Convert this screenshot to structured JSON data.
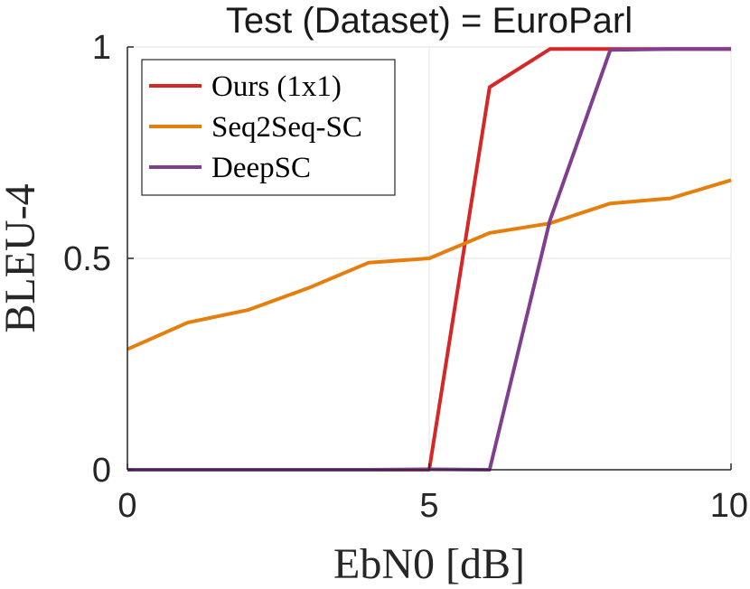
{
  "chart_data": {
    "type": "line",
    "title": "Test (Dataset) = EuroParl",
    "xlabel": "EbN0 [dB]",
    "ylabel": "BLEU-4",
    "xlim": [
      0,
      10
    ],
    "ylim": [
      0,
      1
    ],
    "xticks": [
      0,
      5,
      10
    ],
    "xtick_labels": [
      "0",
      "5",
      "10"
    ],
    "yticks": [
      0,
      0.5,
      1
    ],
    "ytick_labels": [
      "0",
      "0.5",
      "1"
    ],
    "grid": true,
    "legend_position": "top-left",
    "series": [
      {
        "name": "Ours (1x1)",
        "color": "#d62728",
        "x": [
          0,
          1,
          2,
          3,
          4,
          5,
          6,
          7,
          8,
          9,
          10
        ],
        "y": [
          0,
          0,
          0,
          0,
          0,
          0,
          0.905,
          0.995,
          0.995,
          0.995,
          0.995
        ]
      },
      {
        "name": "Seq2Seq-SC",
        "color": "#e67e0e",
        "x": [
          0,
          1,
          2,
          3,
          4,
          5,
          6,
          7,
          8,
          9,
          10
        ],
        "y": [
          0.285,
          0.348,
          0.378,
          0.43,
          0.49,
          0.5,
          0.56,
          0.583,
          0.63,
          0.642,
          0.685
        ]
      },
      {
        "name": "DeepSC",
        "color": "#7e3f8f",
        "x": [
          0,
          1,
          2,
          3,
          4,
          5,
          6,
          7,
          8,
          9,
          10
        ],
        "y": [
          0,
          0,
          0,
          0,
          0,
          0.001,
          0,
          0.59,
          0.993,
          0.995,
          0.995
        ]
      }
    ]
  }
}
